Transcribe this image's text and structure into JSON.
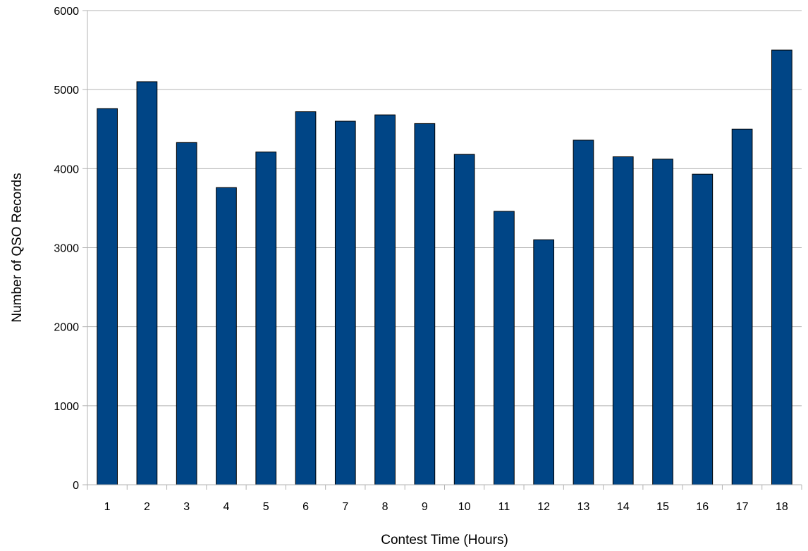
{
  "chart_data": {
    "type": "bar",
    "title": "",
    "xlabel": "Contest Time (Hours)",
    "ylabel": "Number of QSO Records",
    "categories": [
      "1",
      "2",
      "3",
      "4",
      "5",
      "6",
      "7",
      "8",
      "9",
      "10",
      "11",
      "12",
      "13",
      "14",
      "15",
      "16",
      "17",
      "18"
    ],
    "values": [
      4760,
      5100,
      4330,
      3760,
      4210,
      4720,
      4600,
      4680,
      4570,
      4180,
      3460,
      3100,
      4360,
      4150,
      4120,
      3930,
      4500,
      5500
    ],
    "ylim": [
      0,
      6000
    ],
    "yticks": [
      0,
      1000,
      2000,
      3000,
      4000,
      5000,
      6000
    ],
    "grid": "horizontal",
    "legend": "none",
    "bar_color": "#004586",
    "bar_edge_color": "#000000",
    "grid_color": "#b3b3b3"
  }
}
